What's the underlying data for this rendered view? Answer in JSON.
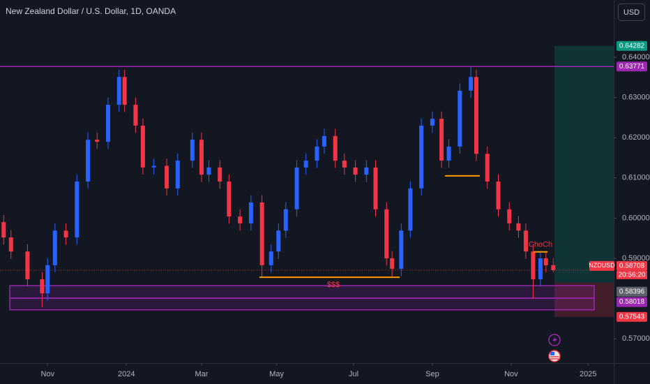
{
  "chart_data": {
    "type": "candlestick",
    "title": "New Zealand Dollar / U.S. Dollar, 1D, OANDA",
    "currency": "USD",
    "symbol": "NZDUSD",
    "countdown": "20:56:20",
    "up_color": "#2962ff",
    "down_color": "#f23645",
    "x": [
      2,
      6,
      15,
      23,
      26,
      30,
      36,
      42,
      48,
      53,
      59,
      65,
      68,
      74,
      78,
      84,
      91,
      97,
      105,
      110,
      114,
      120,
      125,
      131,
      137,
      143,
      148,
      152,
      156,
      162,
      167,
      173,
      177,
      183,
      188,
      194,
      200,
      205,
      211,
      214,
      219,
      224,
      230,
      236,
      241,
      245,
      251,
      257,
      260,
      266,
      272,
      278,
      283,
      287,
      291,
      295,
      298,
      302
    ],
    "open": [
      0.599,
      0.5952,
      0.5917,
      0.5848,
      0.5813,
      0.5883,
      0.5969,
      0.5952,
      0.6091,
      0.6195,
      0.619,
      0.6282,
      0.6351,
      0.6282,
      0.623,
      0.6126,
      0.613,
      0.6074,
      0.6143,
      0.6195,
      0.6108,
      0.6126,
      0.6091,
      0.6004,
      0.5987,
      0.6039,
      0.5883,
      0.5917,
      0.5969,
      0.6022,
      0.6126,
      0.6143,
      0.6178,
      0.6204,
      0.6143,
      0.6126,
      0.6108,
      0.6126,
      0.6022,
      0.59,
      0.5874,
      0.5969,
      0.6074,
      0.623,
      0.6247,
      0.6143,
      0.6178,
      0.6317,
      0.6351,
      0.616,
      0.6091,
      0.6022,
      0.5987,
      0.5969,
      0.5917,
      0.5848,
      0.59,
      0.5883
    ],
    "high": [
      0.6008,
      0.597,
      0.5935,
      0.5866,
      0.5901,
      0.5987,
      0.5987,
      0.6109,
      0.6213,
      0.6213,
      0.63,
      0.6369,
      0.6369,
      0.63,
      0.6248,
      0.6148,
      0.6148,
      0.6161,
      0.6213,
      0.6213,
      0.6144,
      0.6144,
      0.6109,
      0.6022,
      0.6057,
      0.6057,
      0.5935,
      0.5987,
      0.604,
      0.6144,
      0.6161,
      0.6196,
      0.6222,
      0.6222,
      0.6161,
      0.6144,
      0.6144,
      0.6144,
      0.604,
      0.5918,
      0.5987,
      0.6092,
      0.6248,
      0.6265,
      0.6265,
      0.6196,
      0.6335,
      0.6376,
      0.6369,
      0.6178,
      0.6109,
      0.604,
      0.6005,
      0.5987,
      0.5935,
      0.5918,
      0.5918,
      0.5901
    ],
    "low": [
      0.5934,
      0.5899,
      0.583,
      0.5779,
      0.5795,
      0.5865,
      0.5934,
      0.5934,
      0.6073,
      0.6172,
      0.6172,
      0.6264,
      0.6264,
      0.6212,
      0.6108,
      0.6108,
      0.6056,
      0.6056,
      0.6125,
      0.609,
      0.609,
      0.6073,
      0.5986,
      0.5969,
      0.5969,
      0.5853,
      0.5865,
      0.5899,
      0.5951,
      0.6004,
      0.6108,
      0.6125,
      0.616,
      0.6125,
      0.6108,
      0.609,
      0.609,
      0.6004,
      0.5882,
      0.5853,
      0.5856,
      0.5951,
      0.6056,
      0.6212,
      0.6125,
      0.6125,
      0.616,
      0.6299,
      0.6142,
      0.6073,
      0.6004,
      0.5969,
      0.5951,
      0.5899,
      0.58,
      0.583,
      0.5865,
      0.5865
    ],
    "close": [
      0.5952,
      0.5917,
      0.5848,
      0.5813,
      0.5883,
      0.5969,
      0.5952,
      0.6091,
      0.6195,
      0.619,
      0.6282,
      0.6351,
      0.6282,
      0.623,
      0.6126,
      0.613,
      0.6074,
      0.6143,
      0.6195,
      0.6108,
      0.6126,
      0.6091,
      0.6004,
      0.5987,
      0.6039,
      0.5883,
      0.5917,
      0.5969,
      0.6022,
      0.6126,
      0.6143,
      0.6178,
      0.6204,
      0.6143,
      0.6126,
      0.6108,
      0.6126,
      0.6022,
      0.59,
      0.5874,
      0.5969,
      0.6074,
      0.623,
      0.6247,
      0.6143,
      0.6178,
      0.6317,
      0.6351,
      0.616,
      0.6091,
      0.6022,
      0.5987,
      0.5969,
      0.5917,
      0.5848,
      0.59,
      0.5883,
      0.58708
    ],
    "xlim": [
      0,
      335
    ],
    "xticks": [
      {
        "value": 26,
        "label": "Nov"
      },
      {
        "value": 69,
        "label": "2024"
      },
      {
        "value": 110,
        "label": "Mar"
      },
      {
        "value": 151,
        "label": "May"
      },
      {
        "value": 193,
        "label": "Jul"
      },
      {
        "value": 236,
        "label": "Sep"
      },
      {
        "value": 279,
        "label": "Nov"
      },
      {
        "value": 321,
        "label": "2025"
      }
    ],
    "ylim": [
      0.56396,
      0.65424
    ],
    "yticks": [
      {
        "value": 0.64,
        "label": "0.64000"
      },
      {
        "value": 0.63,
        "label": "0.63000"
      },
      {
        "value": 0.62,
        "label": "0.62000"
      },
      {
        "value": 0.61,
        "label": "0.61000"
      },
      {
        "value": 0.6,
        "label": "0.60000"
      },
      {
        "value": 0.59,
        "label": "0.59000"
      },
      {
        "value": 0.57,
        "label": "0.57000"
      }
    ],
    "zone_color": "#9c27b0",
    "zones": [
      {
        "high": 0.5832,
        "low": 0.5801
      },
      {
        "high": 0.5801,
        "low": 0.5772
      }
    ],
    "line_color": "#ff9800",
    "label_color": "#f23645",
    "lines": [
      {
        "value": 0.5853,
        "label": "$$$"
      },
      {
        "value": 0.6105
      },
      {
        "value": 0.5916,
        "label": "ChoCh"
      }
    ],
    "price_labels": [
      {
        "value": 0.64282,
        "color": "#089981"
      },
      {
        "value": 0.63771,
        "color": "#9c27b0"
      },
      {
        "value": 0.58708,
        "color": "#f23645"
      },
      {
        "value": 0.58396,
        "color": "#5d606b"
      },
      {
        "value": 0.58018,
        "color": "#9c27b0"
      },
      {
        "value": 0.57543,
        "color": "#f23645"
      }
    ]
  }
}
